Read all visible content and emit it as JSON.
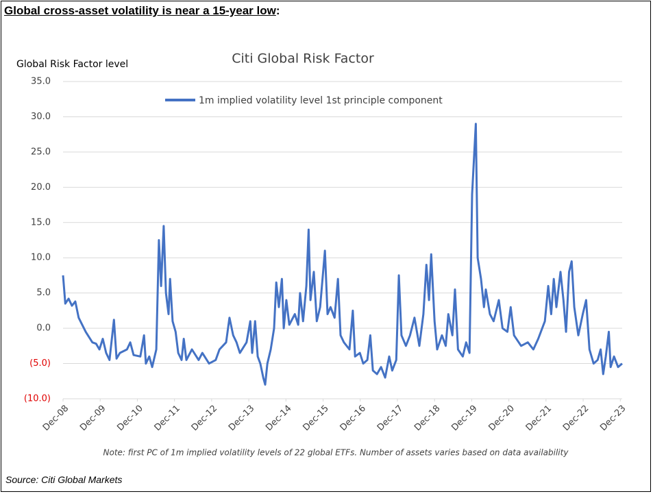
{
  "headline": "Global cross-asset volatility is near a 15-year low",
  "headline_suffix": ":",
  "source": "Source: Citi Global Markets",
  "chart_data": {
    "type": "line",
    "title": "Citi Global Risk Factor",
    "y_label": "Global Risk Factor level",
    "note": "Note: first PC of 1m implied volatility levels of  22  global ETFs. Number of assets varies based on data availability",
    "ylim": [
      -10,
      35
    ],
    "yticks": [
      {
        "value": -10,
        "label": "(10.0)"
      },
      {
        "value": -5,
        "label": "(5.0)"
      },
      {
        "value": 0,
        "label": "0.0"
      },
      {
        "value": 5,
        "label": "5.0"
      },
      {
        "value": 10,
        "label": "10.0"
      },
      {
        "value": 15,
        "label": "15.0"
      },
      {
        "value": 20,
        "label": "20.0"
      },
      {
        "value": 25,
        "label": "25.0"
      },
      {
        "value": 30,
        "label": "30.0"
      },
      {
        "value": 35,
        "label": "35.0"
      }
    ],
    "negative_tick_color": "#e00000",
    "xlim": [
      0,
      15.05
    ],
    "xticks": [
      {
        "value": 0,
        "label": "Dec-08"
      },
      {
        "value": 1,
        "label": "Dec-09"
      },
      {
        "value": 2,
        "label": "Dec-10"
      },
      {
        "value": 3,
        "label": "Dec-11"
      },
      {
        "value": 4,
        "label": "Dec-12"
      },
      {
        "value": 5,
        "label": "Dec-13"
      },
      {
        "value": 6,
        "label": "Dec-14"
      },
      {
        "value": 7,
        "label": "Dec-15"
      },
      {
        "value": 8,
        "label": "Dec-16"
      },
      {
        "value": 9,
        "label": "Dec-17"
      },
      {
        "value": 10,
        "label": "Dec-18"
      },
      {
        "value": 11,
        "label": "Dec-19"
      },
      {
        "value": 12,
        "label": "Dec-20"
      },
      {
        "value": 13,
        "label": "Dec-21"
      },
      {
        "value": 14,
        "label": "Dec-22"
      },
      {
        "value": 15,
        "label": "Dec-23"
      }
    ],
    "grid": true,
    "x": [
      0,
      0.06,
      0.15,
      0.24,
      0.33,
      0.42,
      0.61,
      0.79,
      0.89,
      0.98,
      1.07,
      1.16,
      1.25,
      1.37,
      1.44,
      1.53,
      1.72,
      1.81,
      1.9,
      2.08,
      2.18,
      2.23,
      2.32,
      2.4,
      2.51,
      2.58,
      2.64,
      2.71,
      2.77,
      2.84,
      2.88,
      2.95,
      3.03,
      3.1,
      3.19,
      3.25,
      3.32,
      3.47,
      3.65,
      3.75,
      3.93,
      4.11,
      4.21,
      4.39,
      4.48,
      4.58,
      4.67,
      4.76,
      4.94,
      5.04,
      5.09,
      5.17,
      5.24,
      5.31,
      5.39,
      5.44,
      5.5,
      5.59,
      5.68,
      5.74,
      5.81,
      5.89,
      5.94,
      6.01,
      6.09,
      6.24,
      6.33,
      6.38,
      6.46,
      6.55,
      6.61,
      6.66,
      6.75,
      6.83,
      6.92,
      7.05,
      7.12,
      7.2,
      7.31,
      7.4,
      7.47,
      7.56,
      7.71,
      7.8,
      7.86,
      7.99,
      8.08,
      8.19,
      8.27,
      8.34,
      8.45,
      8.56,
      8.67,
      8.78,
      8.86,
      8.97,
      9.04,
      9.11,
      9.23,
      9.34,
      9.46,
      9.59,
      9.7,
      9.78,
      9.85,
      9.91,
      10.0,
      10.07,
      10.2,
      10.3,
      10.37,
      10.48,
      10.55,
      10.63,
      10.76,
      10.85,
      10.94,
      11.01,
      11.11,
      11.16,
      11.25,
      11.33,
      11.38,
      11.49,
      11.59,
      11.73,
      11.83,
      11.96,
      12.05,
      12.14,
      12.33,
      12.51,
      12.66,
      12.79,
      12.97,
      13.06,
      13.14,
      13.21,
      13.28,
      13.39,
      13.47,
      13.54,
      13.62,
      13.69,
      13.76,
      13.87,
      13.99,
      14.08,
      14.17,
      14.28,
      14.39,
      14.47,
      14.54,
      14.61,
      14.69,
      14.74,
      14.83,
      14.94,
      15.05
    ],
    "series": [
      {
        "name": "1m implied volatility level 1st principle component",
        "color": "#4472c4",
        "values": [
          7.5,
          3.5,
          4.2,
          3.2,
          3.8,
          1.5,
          -0.5,
          -2,
          -2.2,
          -3,
          -1.5,
          -3.5,
          -4.5,
          1.2,
          -4.3,
          -3.5,
          -3,
          -2,
          -3.8,
          -4,
          -1,
          -5,
          -4,
          -5.5,
          -3,
          12.5,
          6,
          14.5,
          5,
          2,
          7,
          1,
          -0.5,
          -3.5,
          -4.5,
          -1.5,
          -4.5,
          -3,
          -4.5,
          -3.5,
          -5,
          -4.5,
          -3,
          -2,
          1.5,
          -1,
          -2,
          -3.5,
          -2,
          1,
          -3.5,
          1,
          -4,
          -5,
          -7,
          -8,
          -5,
          -3,
          0,
          6.5,
          3,
          7,
          0,
          4,
          0.5,
          2,
          0.5,
          5,
          1,
          6,
          14,
          4,
          8,
          1,
          3,
          11,
          2,
          3,
          1.5,
          7,
          -1,
          -2,
          -3,
          2.5,
          -4,
          -3.5,
          -5,
          -4.5,
          -1,
          -6,
          -6.5,
          -5.5,
          -7,
          -4,
          -6,
          -4.5,
          7.5,
          -1,
          -2.5,
          -1,
          1.5,
          -2.5,
          2,
          9,
          4,
          10.5,
          1,
          -3,
          -1,
          -2.5,
          2,
          -1,
          5.5,
          -3,
          -4,
          -2,
          -3.5,
          19,
          29,
          10,
          7,
          3,
          5.5,
          2,
          1,
          4,
          0,
          -0.5,
          3,
          -1,
          -2.5,
          -2,
          -3,
          -1.5,
          1,
          6,
          2,
          7,
          3,
          8,
          4,
          -0.5,
          8,
          9.5,
          3,
          -1,
          2,
          4,
          -3,
          -5,
          -4.5,
          -3,
          -6.5,
          -4,
          -0.5,
          -5.5,
          -4,
          -5.5,
          -5
        ]
      }
    ]
  }
}
